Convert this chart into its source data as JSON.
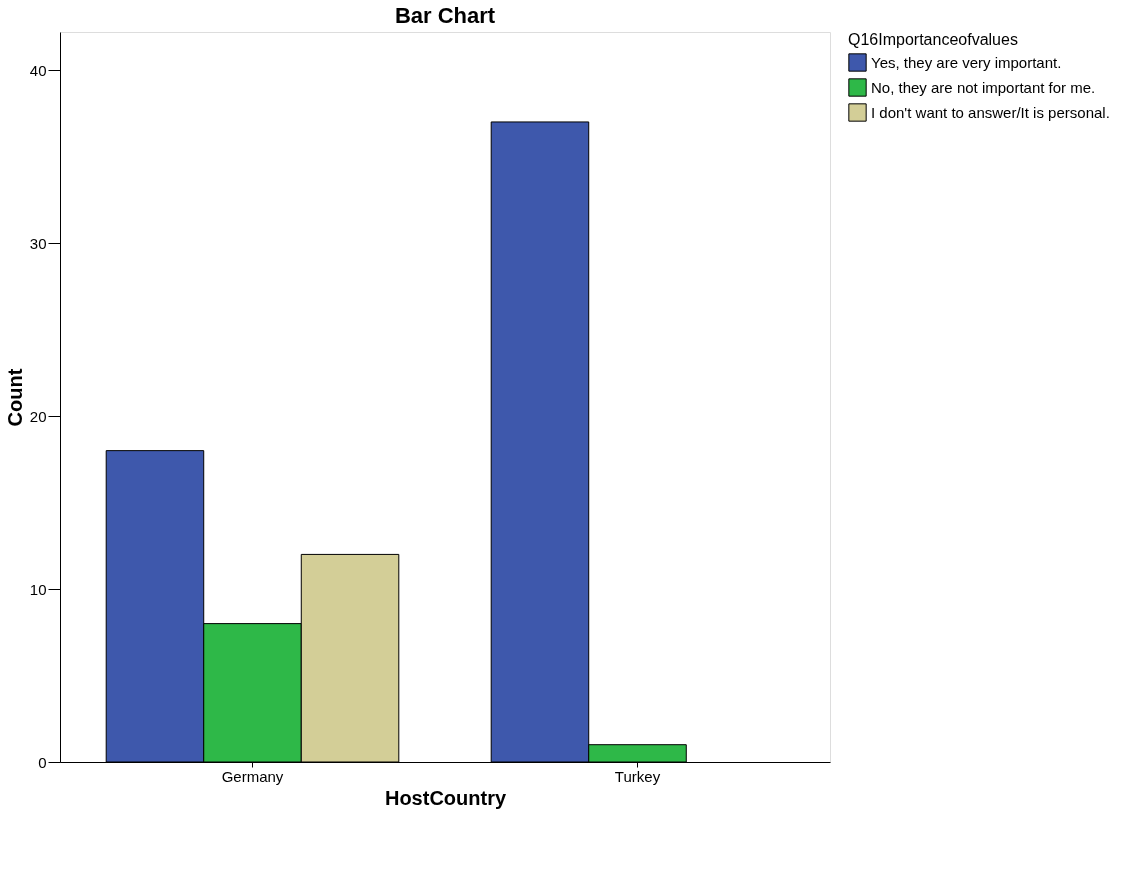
{
  "chart_data": {
    "type": "bar",
    "title": "Bar Chart",
    "xlabel": "HostCountry",
    "ylabel": "Count",
    "legend_title": "Q16Importanceofvalues",
    "categories": [
      "Germany",
      "Turkey"
    ],
    "series": [
      {
        "name": "Yes, they are very important.",
        "color": "#3e58ac",
        "values": [
          18,
          37
        ]
      },
      {
        "name": "No, they are not important for me.",
        "color": "#2eb848",
        "values": [
          8,
          1
        ]
      },
      {
        "name": "I don't want to answer/It is personal.",
        "color": "#d3ce97",
        "values": [
          12,
          null
        ]
      }
    ],
    "ylim": [
      0,
      42.2
    ],
    "yticks": [
      0,
      10,
      20,
      30,
      40
    ],
    "grid": false,
    "legend": "top right"
  }
}
